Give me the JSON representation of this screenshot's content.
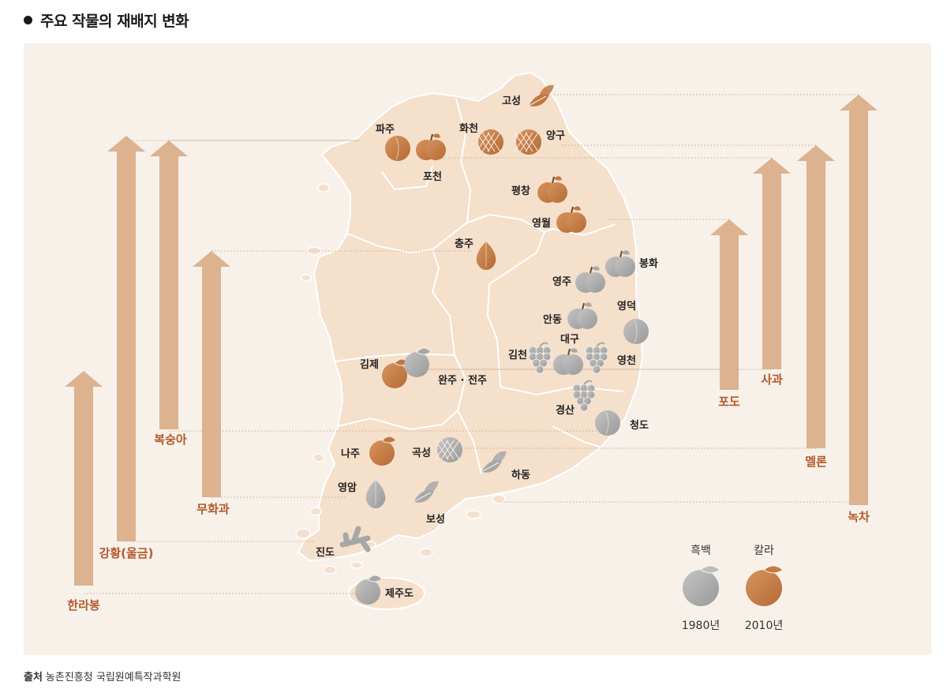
{
  "title": "주요 작물의 재배지 변화",
  "source": {
    "label": "출처",
    "text": "농촌진흥청 국립원예특작과학원"
  },
  "colors": {
    "background": "#f7f1ea",
    "land": "#f5e0cc",
    "border": "#ffffff",
    "arrow": "#dcb28f",
    "crop_label": "#b4582a",
    "color_icon": "#c2773f",
    "gray_icon": "#a7a7a7"
  },
  "legend": {
    "mono": {
      "label": "흑백",
      "year": "1980년"
    },
    "color": {
      "label": "칼라",
      "year": "2010년"
    }
  },
  "crops": [
    {
      "name": "한라봉",
      "icon": "citrus-icon"
    },
    {
      "name": "강황(울금)",
      "icon": "ginger-icon"
    },
    {
      "name": "복숭아",
      "icon": "peach-icon"
    },
    {
      "name": "무화과",
      "icon": "fig-icon"
    },
    {
      "name": "포도",
      "icon": "grape-icon"
    },
    {
      "name": "사과",
      "icon": "apple-icon"
    },
    {
      "name": "멜론",
      "icon": "melon-icon"
    },
    {
      "name": "녹차",
      "icon": "tea-leaf-icon"
    }
  ],
  "places": [
    {
      "name": "고성",
      "crop": "녹차",
      "era": "2010년"
    },
    {
      "name": "파주",
      "crop": "복숭아",
      "era": "2010년"
    },
    {
      "name": "화천",
      "crop": "멜론",
      "era": "2010년"
    },
    {
      "name": "양구",
      "crop": "멜론",
      "era": "2010년"
    },
    {
      "name": "포천",
      "crop": "사과",
      "era": "2010년"
    },
    {
      "name": "평창",
      "crop": "사과",
      "era": "2010년"
    },
    {
      "name": "영월",
      "crop": "사과",
      "era": "2010년"
    },
    {
      "name": "충주",
      "crop": "무화과",
      "era": "2010년"
    },
    {
      "name": "영주",
      "crop": "사과",
      "era": "1980년"
    },
    {
      "name": "봉화",
      "crop": "사과",
      "era": "1980년"
    },
    {
      "name": "안동",
      "crop": "사과",
      "era": "1980년"
    },
    {
      "name": "영덕",
      "crop": "복숭아",
      "era": "1980년"
    },
    {
      "name": "대구",
      "crop": "사과",
      "era": "1980년"
    },
    {
      "name": "김천",
      "crop": "포도",
      "era": "1980년"
    },
    {
      "name": "영천",
      "crop": "포도",
      "era": "1980년"
    },
    {
      "name": "김제",
      "crop": "한라봉",
      "era": "2010년"
    },
    {
      "name": "완주 · 전주",
      "crop": "한라봉",
      "era": "1980년"
    },
    {
      "name": "경산",
      "crop": "포도",
      "era": "1980년"
    },
    {
      "name": "청도",
      "crop": "복숭아",
      "era": "1980년"
    },
    {
      "name": "나주",
      "crop": "한라봉",
      "era": "2010년"
    },
    {
      "name": "곡성",
      "crop": "멜론",
      "era": "1980년"
    },
    {
      "name": "하동",
      "crop": "녹차",
      "era": "1980년"
    },
    {
      "name": "영암",
      "crop": "무화과",
      "era": "1980년"
    },
    {
      "name": "보성",
      "crop": "녹차",
      "era": "1980년"
    },
    {
      "name": "진도",
      "crop": "강황(울금)",
      "era": "1980년"
    },
    {
      "name": "제주도",
      "crop": "한라봉",
      "era": "1980년"
    }
  ]
}
